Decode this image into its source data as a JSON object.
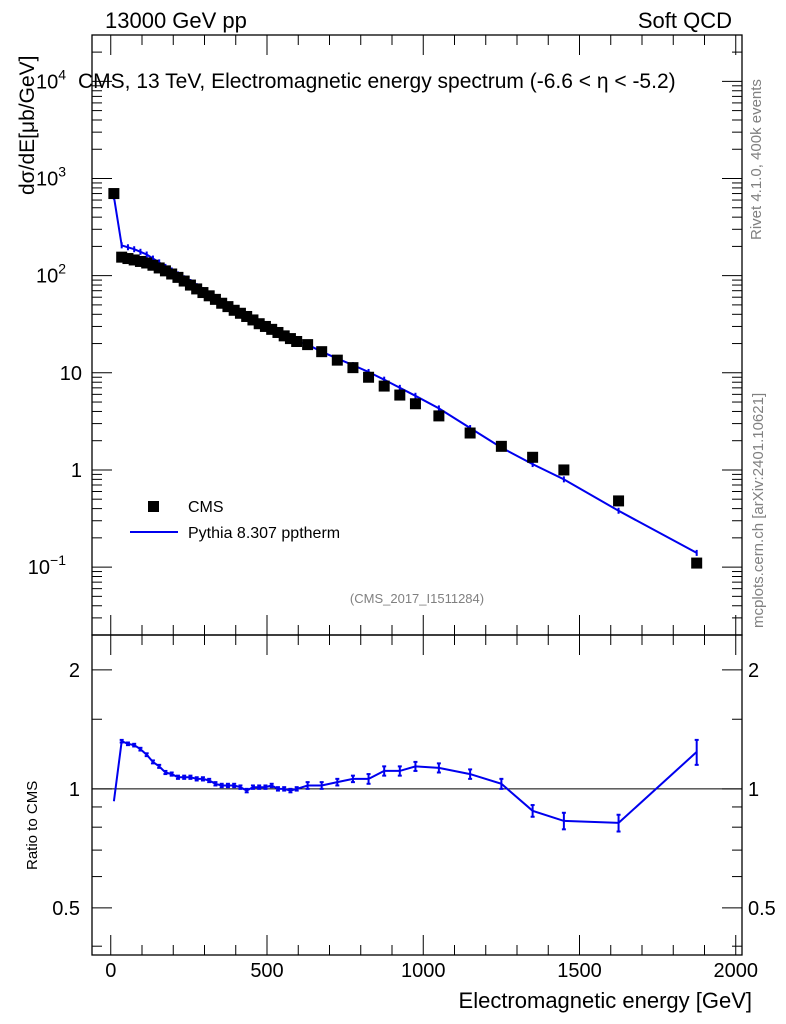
{
  "header": {
    "left": "13000 GeV pp",
    "right": "Soft QCD",
    "title": "CMS, 13 TeV, Electromagnetic energy spectrum (-6.6 < η < -5.2)",
    "side_top": "Rivet 4.1.0,  400k events",
    "side_bottom": "mcplots.cern.ch [arXiv:2401.10621]",
    "analysis": "(CMS_2017_I1511284)"
  },
  "chart_data": {
    "type": "scatter",
    "title": "CMS, 13 TeV, Electromagnetic energy spectrum (-6.6 < η < -5.2)",
    "xlabel": "Electromagnetic energy [GeV]",
    "ylabel": "dσ/dE[μb/GeV]",
    "ratio_ylabel": "Ratio to CMS",
    "xlim": [
      -60,
      2020
    ],
    "ylim": [
      0.02,
      30000
    ],
    "yscale": "log",
    "ratio_ylim": [
      0.38,
      2.45
    ],
    "x_ticks": [
      "0",
      "500",
      "1000",
      "1500",
      "2000"
    ],
    "y_ticks": [
      "10^-1",
      "1",
      "10",
      "10^2",
      "10^3",
      "10^4"
    ],
    "ratio_ticks": [
      "0.5",
      "1",
      "2"
    ],
    "legend": [
      "CMS",
      "Pythia 8.307 pptherm"
    ],
    "legend_position": "lower-left",
    "series": [
      {
        "name": "CMS",
        "x": [
          10,
          35,
          55,
          75,
          95,
          115,
          135,
          155,
          175,
          195,
          215,
          235,
          255,
          275,
          295,
          315,
          335,
          355,
          375,
          395,
          415,
          435,
          455,
          475,
          495,
          515,
          535,
          555,
          575,
          595,
          630,
          675,
          725,
          775,
          825,
          875,
          925,
          975,
          1050,
          1150,
          1250,
          1350,
          1450,
          1625,
          1875
        ],
        "y": [
          700,
          155,
          150,
          145,
          140,
          135,
          128,
          120,
          112,
          104,
          96,
          88,
          80,
          73,
          67,
          62,
          57,
          52,
          48,
          44,
          41,
          38,
          35,
          32,
          30,
          28,
          26,
          24,
          22.5,
          21,
          19.5,
          16.5,
          13.5,
          11.3,
          9.0,
          7.3,
          5.9,
          4.8,
          3.6,
          2.4,
          1.75,
          1.35,
          1.0,
          0.48,
          0.11
        ]
      },
      {
        "name": "Pythia 8.307 pptherm",
        "x": [
          10,
          35,
          55,
          75,
          95,
          115,
          135,
          155,
          175,
          195,
          215,
          235,
          255,
          275,
          295,
          315,
          335,
          355,
          375,
          395,
          415,
          435,
          455,
          475,
          495,
          515,
          535,
          555,
          575,
          595,
          630,
          675,
          725,
          775,
          825,
          875,
          925,
          975,
          1050,
          1150,
          1250,
          1350,
          1450,
          1625,
          1875
        ],
        "y": [
          650,
          205,
          196,
          187,
          176,
          165,
          150,
          137,
          123,
          113,
          103,
          94,
          86,
          78,
          71,
          65,
          59,
          53,
          49,
          45,
          41,
          38,
          35,
          32.5,
          30,
          28.2,
          26,
          24.2,
          22,
          21,
          19.5,
          16.5,
          14,
          12,
          10.2,
          8.5,
          7,
          5.8,
          4.3,
          2.7,
          1.7,
          1.15,
          0.8,
          0.38,
          0.14
        ],
        "ratio": [
          0.93,
          1.32,
          1.3,
          1.29,
          1.26,
          1.22,
          1.17,
          1.14,
          1.1,
          1.09,
          1.07,
          1.07,
          1.07,
          1.06,
          1.06,
          1.05,
          1.03,
          1.02,
          1.02,
          1.02,
          1.01,
          0.99,
          1.01,
          1.01,
          1.01,
          1.02,
          1.0,
          1.0,
          0.99,
          1.0,
          1.02,
          1.02,
          1.04,
          1.06,
          1.06,
          1.11,
          1.11,
          1.14,
          1.13,
          1.09,
          1.03,
          0.88,
          0.83,
          0.82,
          1.24
        ],
        "ratio_err": [
          0,
          0.01,
          0.01,
          0.01,
          0.01,
          0.01,
          0.01,
          0.01,
          0.01,
          0.01,
          0.01,
          0.01,
          0.01,
          0.01,
          0.01,
          0.01,
          0.01,
          0.01,
          0.01,
          0.01,
          0.01,
          0.01,
          0.01,
          0.01,
          0.01,
          0.01,
          0.01,
          0.01,
          0.01,
          0.01,
          0.02,
          0.02,
          0.02,
          0.02,
          0.03,
          0.03,
          0.03,
          0.03,
          0.03,
          0.03,
          0.03,
          0.03,
          0.04,
          0.04,
          0.09
        ]
      }
    ]
  },
  "colors": {
    "mc": "#0000ee",
    "data": "#000000",
    "axis": "#000000",
    "watermark": "#808080"
  }
}
